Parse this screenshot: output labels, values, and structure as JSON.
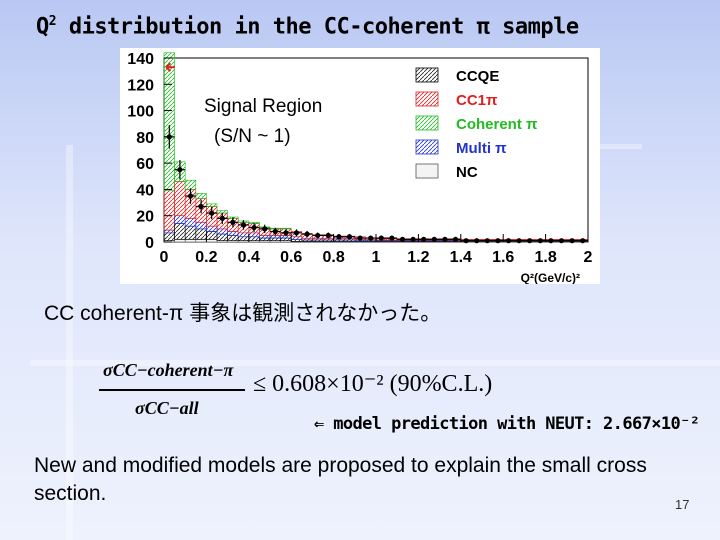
{
  "slide": {
    "title_prefix": "Q",
    "title_sup": "2",
    "title_rest": " distribution in the CC-coherent π sample",
    "subtitle": "CC coherent-π 事象は観測されなかった。",
    "formula": {
      "numerator": "σCC−coherent−π",
      "denominator": "σCC−all",
      "relation": "≤ 0.608×10⁻² (90%C.L.)"
    },
    "note": "⇐ model prediction with NEUT: 2.667×10⁻²",
    "body": "New and modified models are proposed to explain the small cross section.",
    "page_number": "17"
  },
  "chart_data": {
    "type": "bar",
    "xlabel": "Q²(GeV/c)²",
    "xlim": [
      0,
      2
    ],
    "ylim": [
      0,
      140
    ],
    "x_ticks": [
      "0",
      "0.2",
      "0.4",
      "0.6",
      "0.8",
      "1",
      "1.2",
      "1.4",
      "1.6",
      "1.8",
      "2"
    ],
    "y_ticks": [
      "0",
      "20",
      "40",
      "60",
      "80",
      "100",
      "120",
      "140"
    ],
    "annotation": "Signal Region\n(S/N ~ 1)",
    "legend": [
      {
        "label": "CCQE",
        "color": "#000000"
      },
      {
        "label": "CC1π",
        "color": "#e02020"
      },
      {
        "label": "Coherent π",
        "color": "#22bb22"
      },
      {
        "label": "Multi π",
        "color": "#2233cc"
      },
      {
        "label": "NC",
        "color": "#000000"
      }
    ],
    "bin_width": 0.05,
    "series": [
      {
        "name": "CCQE",
        "values": [
          6,
          12,
          10,
          8,
          6,
          5,
          4,
          3,
          3,
          2,
          2,
          2,
          1.5,
          1,
          1,
          1,
          1,
          1,
          0.5,
          0.5,
          0.5,
          0.5,
          0.5,
          0.5,
          0.5,
          0.5,
          0.5,
          0.5,
          0.5,
          0.5,
          0.5,
          0.5,
          0.5,
          0.5,
          0.5,
          0.5,
          0.5,
          0.5,
          0.5,
          0.5
        ]
      },
      {
        "name": "CC1π",
        "values": [
          30,
          26,
          22,
          18,
          15,
          12,
          10,
          8,
          7,
          6,
          5,
          5,
          4,
          4,
          3,
          3,
          2,
          2,
          2,
          1,
          1,
          1,
          1,
          1,
          1,
          1,
          1,
          1,
          0.5,
          0.5,
          0.5,
          0.5,
          0.5,
          0.5,
          0.5,
          0.5,
          0.5,
          0.5,
          0.5,
          0.5
        ]
      },
      {
        "name": "Coherent π",
        "values": [
          105,
          15,
          7,
          4,
          2,
          2,
          1,
          1,
          1,
          0.5,
          0.5,
          0.5,
          0,
          0,
          0,
          0,
          0,
          0,
          0,
          0,
          0,
          0,
          0,
          0,
          0,
          0,
          0,
          0,
          0,
          0,
          0,
          0,
          0,
          0,
          0,
          0,
          0,
          0,
          0,
          0
        ]
      },
      {
        "name": "Multi π",
        "values": [
          2,
          6,
          6,
          5,
          4,
          4,
          3,
          3,
          3,
          2,
          2,
          2,
          2,
          1,
          1,
          1,
          1,
          1,
          1,
          1,
          0.5,
          0.5,
          0.5,
          0.5,
          0.5,
          0.5,
          0.5,
          0.5,
          0.5,
          0.5,
          0.5,
          0.5,
          0.5,
          0.5,
          0.5,
          0.5,
          0.5,
          0.5,
          0.5,
          0.5
        ]
      },
      {
        "name": "NC",
        "values": [
          1,
          2,
          2,
          2,
          2,
          1,
          1,
          1,
          1,
          1,
          1,
          1,
          0.5,
          0.5,
          0.5,
          0.5,
          0.5,
          0.5,
          0.5,
          0.5,
          0.5,
          0.5,
          0.5,
          0.5,
          0.5,
          0.5,
          0.5,
          0.5,
          0.5,
          0.5,
          0.5,
          0.5,
          0.5,
          0.5,
          0.5,
          0.5,
          0.5,
          0.5,
          0.5,
          0.5
        ]
      },
      {
        "name": "Data",
        "x": [
          0.025,
          0.075,
          0.125,
          0.175,
          0.225,
          0.275,
          0.325,
          0.375,
          0.425,
          0.475,
          0.525,
          0.575,
          0.625,
          0.675,
          0.725,
          0.775,
          0.825,
          0.875,
          0.925,
          0.975,
          1.025,
          1.075,
          1.125,
          1.175,
          1.225,
          1.275,
          1.325,
          1.375,
          1.425,
          1.475,
          1.525,
          1.575,
          1.625,
          1.675,
          1.725,
          1.775,
          1.825,
          1.875,
          1.925,
          1.975
        ],
        "values": [
          80,
          55,
          35,
          27,
          22,
          18,
          15,
          13,
          11,
          10,
          8,
          7,
          7,
          6,
          5,
          5,
          4,
          4,
          3,
          3,
          3,
          3,
          2,
          2,
          2,
          2,
          2,
          2,
          1,
          1,
          1,
          1,
          1,
          1,
          1,
          1,
          1,
          1,
          1,
          1
        ]
      }
    ]
  }
}
